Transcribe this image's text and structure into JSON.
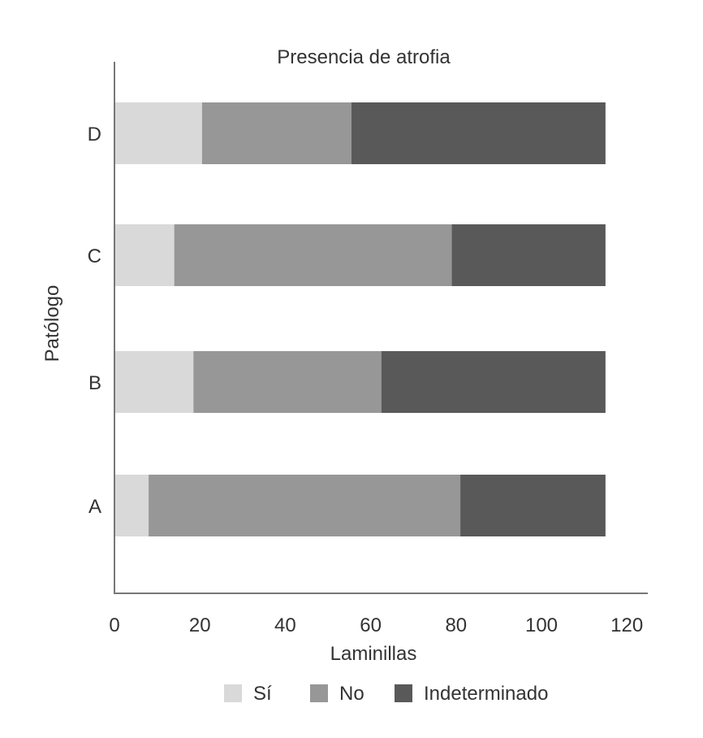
{
  "chart_data": {
    "type": "bar",
    "orientation": "horizontal",
    "stacked": true,
    "title": "Presencia de atrofia",
    "xlabel": "Laminillas",
    "ylabel": "Patólogo",
    "categories": [
      "A",
      "B",
      "C",
      "D"
    ],
    "series": [
      {
        "name": "Sí",
        "color": "#d9d9d9",
        "values": [
          8,
          18.5,
          14,
          20.5
        ]
      },
      {
        "name": "No",
        "color": "#979797",
        "values": [
          73,
          44,
          65,
          35
        ]
      },
      {
        "name": "Indeterminado",
        "color": "#595959",
        "values": [
          34,
          52.5,
          36,
          59.5
        ]
      }
    ],
    "xlim": [
      0,
      120
    ],
    "xticks": [
      "0",
      "20",
      "40",
      "60",
      "80",
      "100",
      "120"
    ],
    "grid": false,
    "legend": "bottom"
  }
}
